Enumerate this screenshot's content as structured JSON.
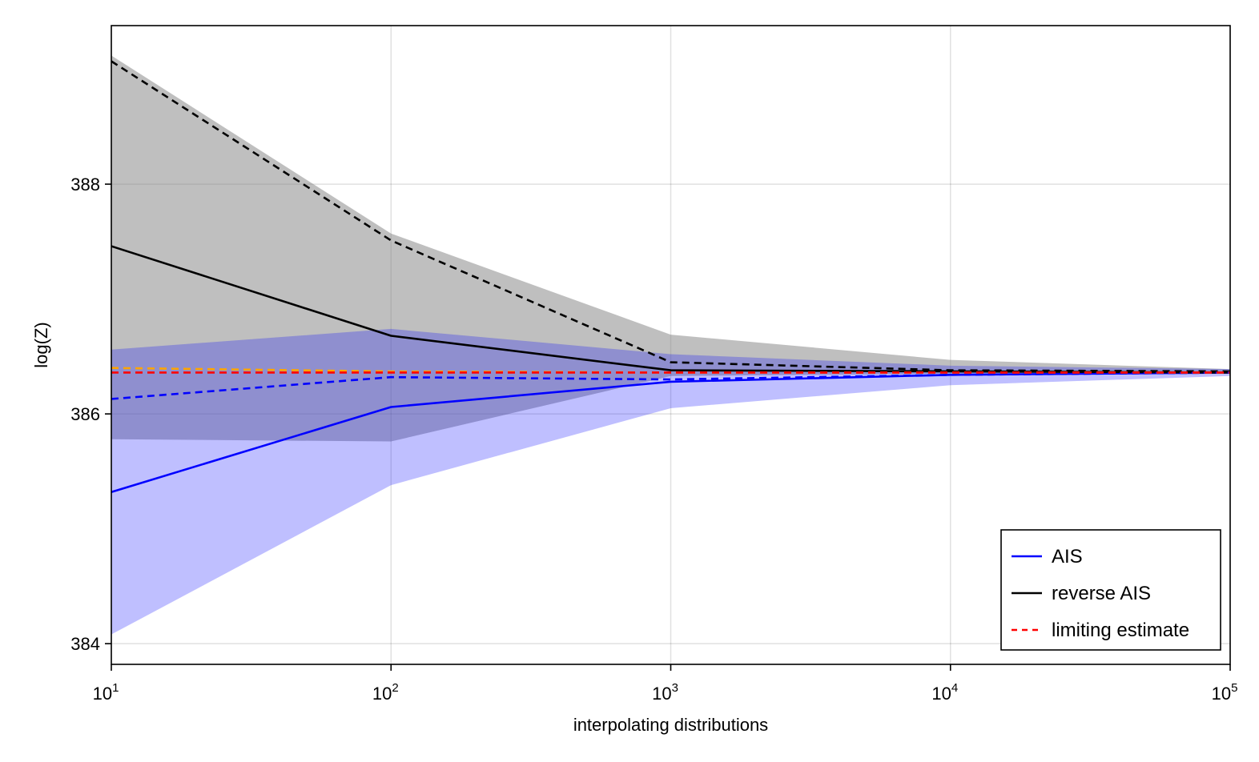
{
  "chart_data": {
    "type": "line",
    "title": "",
    "xlabel": "interpolating distributions",
    "ylabel": "log(Z)",
    "xscale": "log10",
    "xlim": [
      10,
      100000
    ],
    "ylim": [
      383.82,
      389.38
    ],
    "xticks": [
      {
        "value": 10,
        "base": "10",
        "exp": "1"
      },
      {
        "value": 100,
        "base": "10",
        "exp": "2"
      },
      {
        "value": 1000,
        "base": "10",
        "exp": "3"
      },
      {
        "value": 10000,
        "base": "10",
        "exp": "4"
      },
      {
        "value": 100000,
        "base": "10",
        "exp": "5"
      }
    ],
    "yticks": [
      {
        "value": 384,
        "label": "384"
      },
      {
        "value": 386,
        "label": "386"
      },
      {
        "value": 388,
        "label": "388"
      }
    ],
    "grid": true,
    "legend_position": "bottom-right",
    "x": [
      10,
      100,
      1000,
      10000,
      100000
    ],
    "bands": [
      {
        "color": "#808080",
        "opacity": 0.5,
        "lower": [
          385.78,
          385.76,
          386.33,
          386.35,
          386.36
        ],
        "upper": [
          389.12,
          387.57,
          386.69,
          386.47,
          386.39
        ]
      },
      {
        "color": "#0000ff",
        "opacity": 0.25,
        "lower": [
          384.08,
          385.38,
          386.05,
          386.25,
          386.33
        ],
        "upper": [
          386.56,
          386.74,
          386.52,
          386.42,
          386.39
        ]
      }
    ],
    "series": [
      {
        "name": "AIS",
        "color": "#0000ff",
        "dash": "solid",
        "values": [
          385.32,
          386.06,
          386.28,
          386.34,
          386.36
        ]
      },
      {
        "name": "reverse AIS",
        "color": "#000000",
        "dash": "solid",
        "values": [
          387.46,
          386.68,
          386.38,
          386.37,
          386.36
        ]
      },
      {
        "name": "",
        "color": "#000000",
        "dash": "dashed",
        "values": [
          389.07,
          387.51,
          386.45,
          386.38,
          386.37
        ]
      },
      {
        "name": "",
        "color": "#0000ff",
        "dash": "dashed",
        "values": [
          386.13,
          386.32,
          386.3,
          386.34,
          386.36
        ]
      },
      {
        "name": "",
        "color": "#ffa500",
        "dash": "dashed",
        "values": [
          386.4,
          386.37,
          386.36,
          386.36,
          386.36
        ]
      },
      {
        "name": "limiting estimate",
        "color": "#ff0000",
        "dash": "dashed",
        "values": [
          386.36,
          386.36,
          386.36,
          386.36,
          386.36
        ]
      }
    ],
    "legend": [
      {
        "label": "AIS",
        "color": "#0000ff",
        "dash": "solid"
      },
      {
        "label": "reverse AIS",
        "color": "#000000",
        "dash": "solid"
      },
      {
        "label": "limiting estimate",
        "color": "#ff0000",
        "dash": "dashed"
      }
    ]
  }
}
